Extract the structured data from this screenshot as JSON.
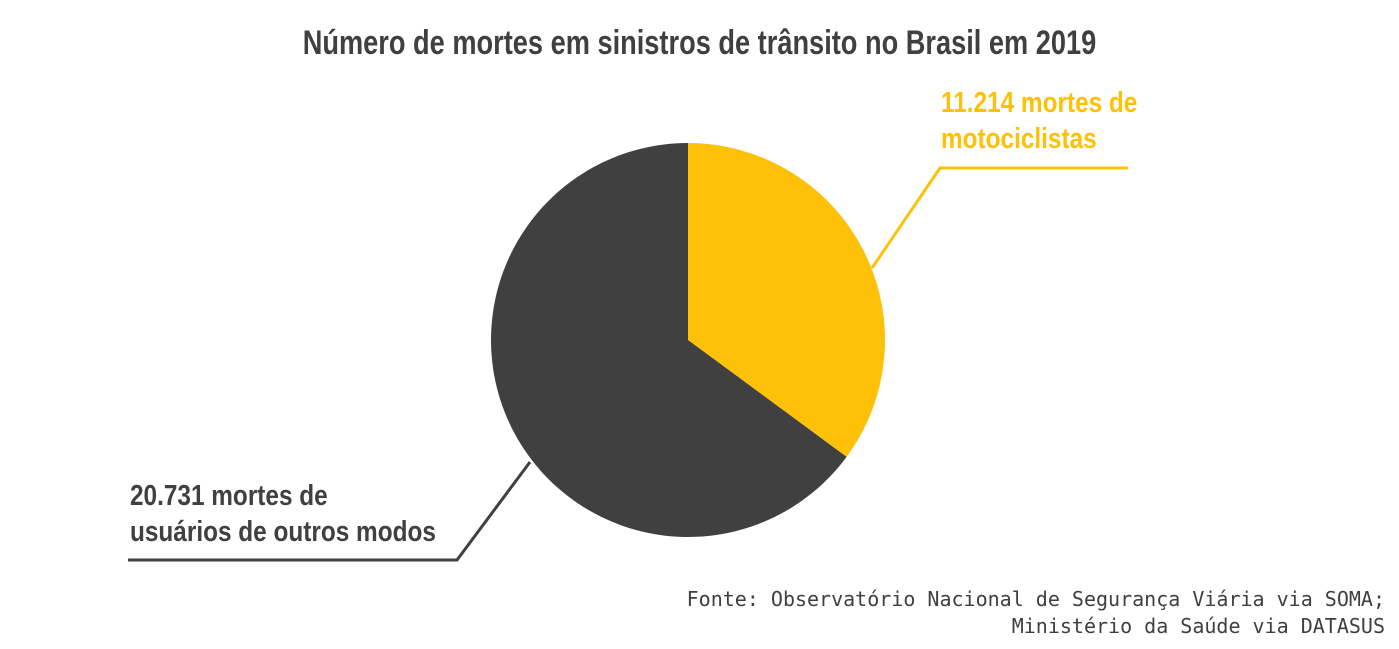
{
  "chart_data": {
    "type": "pie",
    "title": "Número de mortes em sinistros de trânsito no Brasil em 2019",
    "start_angle_deg": 0,
    "direction": "clockwise",
    "legend_position": "callout-labels",
    "background_color": "#ffffff",
    "total": 31945,
    "slices": [
      {
        "id": "motociclistas",
        "label": "mortes de motociclistas",
        "value": 11214,
        "display_value": "11.214",
        "percent": 35.1,
        "color": "#FFC107"
      },
      {
        "id": "outros-modos",
        "label": "mortes de usuários de outros modos",
        "value": 20731,
        "display_value": "20.731",
        "percent": 64.9,
        "color": "#404040"
      }
    ],
    "callouts": {
      "motociclistas": {
        "lines": [
          "11.214 mortes de",
          "motociclistas"
        ]
      },
      "outros": {
        "lines": [
          "20.731 mortes de",
          "usuários de outros modos"
        ]
      }
    },
    "source": {
      "lines": [
        "Fonte: Observatório Nacional de Segurança Viária via SOMA;",
        "Ministério da Saúde via DATASUS"
      ]
    }
  }
}
